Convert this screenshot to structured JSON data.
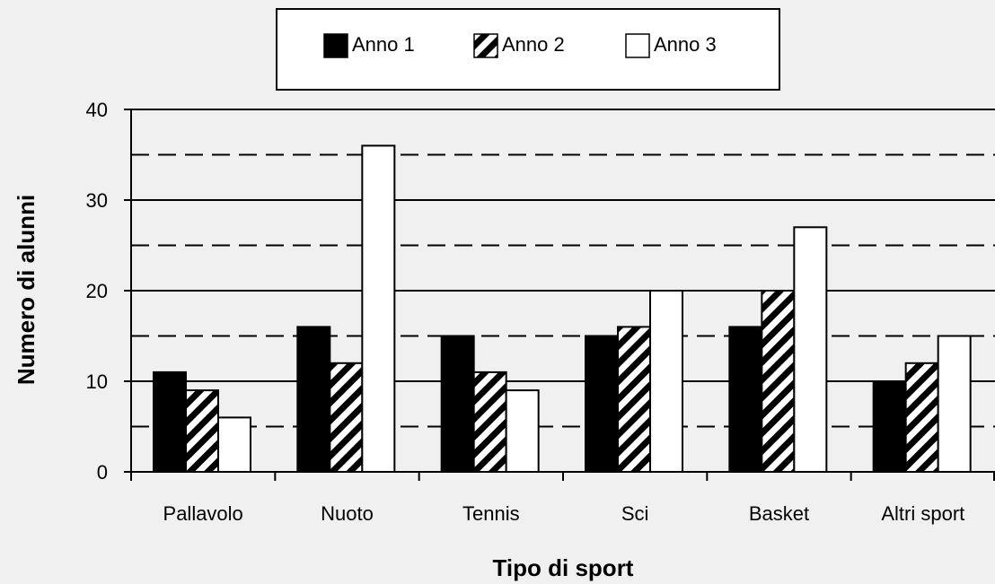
{
  "chart_data": {
    "type": "bar",
    "categories": [
      "Pallavolo",
      "Nuoto",
      "Tennis",
      "Sci",
      "Basket",
      "Altri sport"
    ],
    "series": [
      {
        "name": "Anno 1",
        "values": [
          11,
          16,
          15,
          15,
          16,
          10
        ],
        "fill": "solid-black"
      },
      {
        "name": "Anno 2",
        "values": [
          9,
          12,
          11,
          16,
          20,
          12
        ],
        "fill": "diagonal-hatch"
      },
      {
        "name": "Anno 3",
        "values": [
          6,
          36,
          9,
          20,
          27,
          15
        ],
        "fill": "white"
      }
    ],
    "xlabel": "Tipo di sport",
    "ylabel": "Numero di alunni",
    "ylim": [
      0,
      40
    ],
    "yticks": [
      "0",
      "10",
      "20",
      "30",
      "40"
    ],
    "major_gridlines": "solid",
    "minor_gridlines": "dashed",
    "legend_position": "top-center",
    "colors": {
      "background": "#f0f0f0",
      "bar_fill_dark": "#000000",
      "bar_fill_light": "#ffffff",
      "stroke": "#000000"
    }
  }
}
